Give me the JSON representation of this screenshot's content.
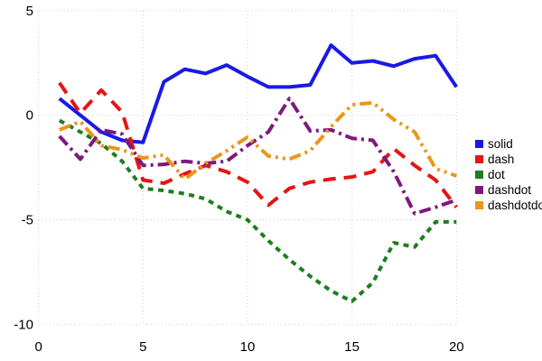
{
  "chart_data": {
    "type": "line",
    "title": "",
    "xlabel": "",
    "ylabel": "",
    "grid": true,
    "legend_position": "right",
    "xlim": [
      0,
      20
    ],
    "ylim": [
      -10,
      5
    ],
    "x_ticks": [
      0,
      5,
      10,
      15,
      20
    ],
    "y_ticks": [
      5,
      0,
      -5,
      -10
    ],
    "x": [
      1,
      2,
      3,
      4,
      5,
      6,
      7,
      8,
      9,
      10,
      11,
      12,
      13,
      14,
      15,
      16,
      17,
      18,
      19,
      20
    ],
    "series": [
      {
        "name": "solid",
        "color": "#1919e6",
        "style": "solid",
        "values": [
          0.8,
          0.0,
          -0.8,
          -1.2,
          -1.3,
          1.6,
          2.2,
          2.0,
          2.4,
          1.85,
          1.35,
          1.35,
          1.45,
          3.35,
          2.5,
          2.6,
          2.35,
          2.7,
          2.85,
          1.35
        ]
      },
      {
        "name": "dash",
        "color": "#e61414",
        "style": "dash",
        "values": [
          1.55,
          0.1,
          1.2,
          0.15,
          -3.1,
          -3.25,
          -2.8,
          -2.4,
          -2.7,
          -3.2,
          -4.3,
          -3.5,
          -3.2,
          -3.05,
          -2.95,
          -2.7,
          -1.6,
          -2.4,
          -3.1,
          -4.4
        ]
      },
      {
        "name": "dot",
        "color": "#1e7d1e",
        "style": "dot",
        "values": [
          -0.25,
          -0.8,
          -1.35,
          -2.2,
          -3.5,
          -3.6,
          -3.75,
          -4.0,
          -4.6,
          -5.0,
          -6.0,
          -6.9,
          -7.7,
          -8.4,
          -8.9,
          -8.0,
          -6.1,
          -6.3,
          -5.1,
          -5.1
        ]
      },
      {
        "name": "dashdot",
        "color": "#7d197d",
        "style": "dashdot",
        "values": [
          -1.0,
          -2.1,
          -0.7,
          -0.9,
          -2.4,
          -2.35,
          -2.2,
          -2.3,
          -2.2,
          -1.45,
          -0.8,
          0.8,
          -0.75,
          -0.7,
          -1.1,
          -1.2,
          -2.7,
          -4.7,
          -4.4,
          -4.05
        ]
      },
      {
        "name": "dashdotdot",
        "color": "#eb9619",
        "style": "dashdotdot",
        "values": [
          -0.7,
          -0.3,
          -1.45,
          -1.65,
          -2.05,
          -1.9,
          -3.05,
          -2.3,
          -1.7,
          -1.05,
          -1.95,
          -2.1,
          -1.7,
          -0.55,
          0.5,
          0.6,
          -0.2,
          -0.8,
          -2.55,
          -2.9
        ]
      }
    ],
    "grid_color": "#c9c9dd",
    "tick_font_px": 15
  }
}
